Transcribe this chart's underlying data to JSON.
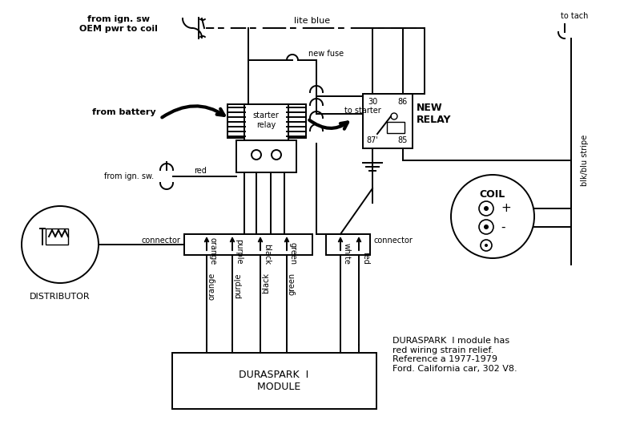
{
  "bg_color": "#ffffff",
  "line_color": "#000000",
  "figsize": [
    7.89,
    5.5
  ],
  "dpi": 100,
  "labels": {
    "from_ign_sw_coil": "from ign. sw\nOEM pwr to coil",
    "lite_blue": "lite blue",
    "new_fuse": "new fuse",
    "from_battery": "from battery",
    "starter_relay": "starter\nrelay",
    "to_starter": "to starter",
    "new_relay": "NEW\nRELAY",
    "from_ign_sw": "from ign. sw.",
    "red": "red",
    "coil": "COIL",
    "to_tach": "to tach",
    "blk_blu_stripe": "blk/blu stripe",
    "distributor": "DISTRIBUTOR",
    "connector_left": "connector",
    "connector_right": "connector",
    "orange": "orange",
    "purple": "purple",
    "black": "black",
    "green": "green",
    "white": "white",
    "red2": "red",
    "module": "DURASPARK  I\n   MODULE",
    "note": "DURASPARK  I module has\nred wiring strain relief.\nReference a 1977-1979\nFord. California car, 302 V8.",
    "relay_30": "30",
    "relay_86": "86",
    "relay_87": "87'",
    "relay_85": "85",
    "coil_plus": "+",
    "coil_minus": "-"
  }
}
